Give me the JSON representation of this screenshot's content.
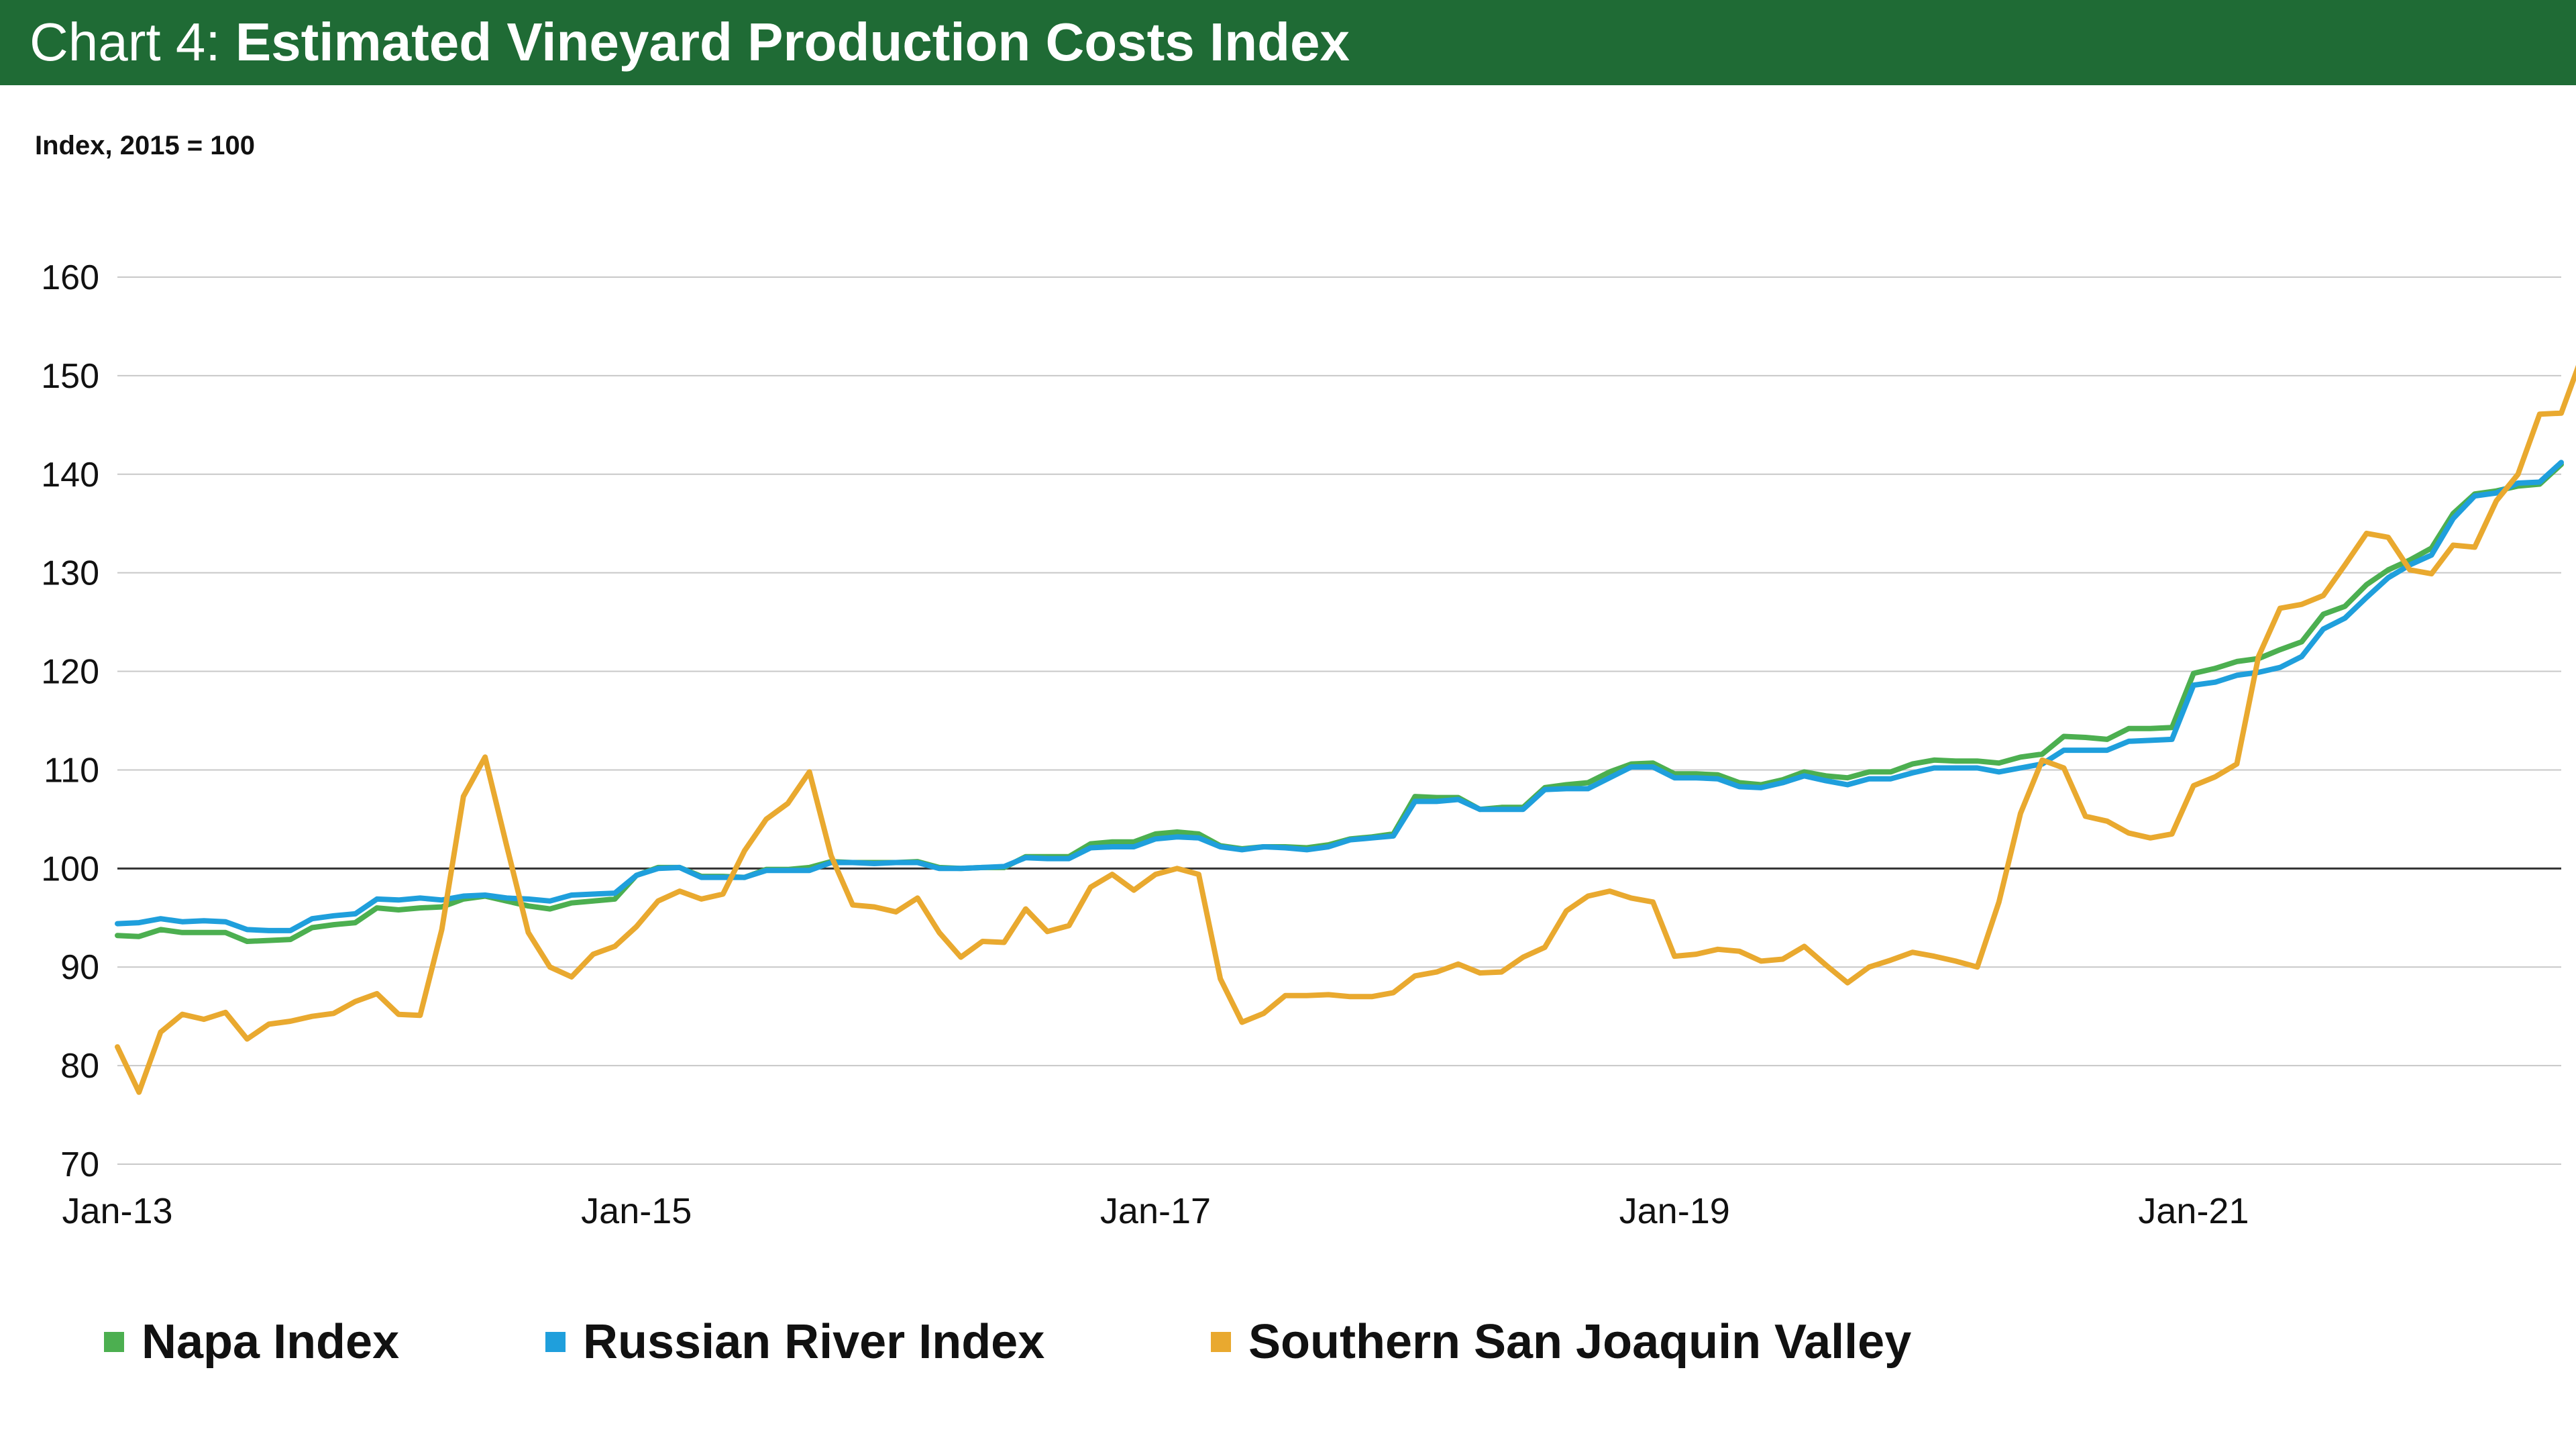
{
  "header": {
    "prefix": "Chart 4:",
    "title": "Estimated Vineyard Production Costs Index"
  },
  "chart_data": {
    "type": "line",
    "title": "Estimated Vineyard Production Costs Index",
    "ylabel": "Index, 2015 = 100",
    "xlabel": "",
    "ylim": [
      70,
      160
    ],
    "yticks": [
      70,
      80,
      90,
      100,
      110,
      120,
      130,
      140,
      150,
      160
    ],
    "xtick_labels": [
      "Jan-13",
      "Jan-15",
      "Jan-17",
      "Jan-19",
      "Jan-21"
    ],
    "xtick_months": [
      0,
      24,
      48,
      72,
      96
    ],
    "x_start": "Jan-13",
    "x_end": "Jul-21",
    "reference_line": 100,
    "grid": true,
    "legend_position": "bottom",
    "series": [
      {
        "name": "Napa Index",
        "color": "#4caf50",
        "values": [
          93.2,
          93.1,
          93.8,
          93.5,
          93.5,
          93.5,
          92.6,
          92.7,
          92.8,
          94.0,
          94.3,
          94.5,
          96.0,
          95.8,
          96.0,
          96.1,
          96.9,
          97.2,
          96.7,
          96.2,
          95.9,
          96.5,
          96.7,
          96.9,
          99.3,
          100.1,
          100.1,
          99.2,
          99.2,
          99.1,
          99.9,
          99.9,
          100.1,
          100.7,
          100.6,
          100.6,
          100.6,
          100.7,
          100.1,
          100.0,
          100.1,
          100.1,
          101.2,
          101.2,
          101.2,
          102.5,
          102.7,
          102.7,
          103.5,
          103.7,
          103.5,
          102.3,
          102.0,
          102.2,
          102.2,
          102.1,
          102.4,
          103.0,
          103.2,
          103.5,
          107.3,
          107.2,
          107.2,
          106.0,
          106.2,
          106.2,
          108.2,
          108.5,
          108.7,
          109.8,
          110.6,
          110.7,
          109.6,
          109.6,
          109.5,
          108.7,
          108.5,
          109.0,
          109.8,
          109.4,
          109.2,
          109.8,
          109.8,
          110.6,
          111.0,
          110.9,
          110.9,
          110.7,
          111.3,
          111.6,
          113.4,
          113.3,
          113.1,
          114.2,
          114.2,
          114.3,
          119.8,
          120.3,
          121.0,
          121.3,
          122.2,
          123.0,
          125.8,
          126.6,
          128.8,
          130.3,
          131.3,
          132.5,
          136.0,
          138.0,
          138.3,
          138.8,
          139.0,
          141.0
        ]
      },
      {
        "name": "Russian River Index",
        "color": "#1f9fdc",
        "values": [
          94.4,
          94.5,
          94.9,
          94.6,
          94.7,
          94.6,
          93.8,
          93.7,
          93.7,
          94.9,
          95.2,
          95.4,
          96.9,
          96.8,
          97.0,
          96.8,
          97.2,
          97.3,
          97.0,
          96.9,
          96.7,
          97.3,
          97.4,
          97.5,
          99.3,
          100.0,
          100.1,
          99.1,
          99.1,
          99.1,
          99.8,
          99.8,
          99.8,
          100.6,
          100.6,
          100.5,
          100.6,
          100.6,
          100.0,
          100.0,
          100.1,
          100.2,
          101.1,
          101.0,
          101.0,
          102.1,
          102.2,
          102.2,
          103.0,
          103.2,
          103.1,
          102.2,
          101.9,
          102.2,
          102.1,
          101.9,
          102.2,
          102.9,
          103.1,
          103.3,
          106.8,
          106.8,
          107.0,
          106.0,
          106.0,
          106.0,
          108.0,
          108.1,
          108.1,
          109.2,
          110.3,
          110.3,
          109.2,
          109.2,
          109.1,
          108.3,
          108.2,
          108.7,
          109.4,
          108.9,
          108.5,
          109.1,
          109.1,
          109.7,
          110.2,
          110.2,
          110.2,
          109.8,
          110.2,
          110.6,
          112.0,
          112.0,
          112.0,
          112.9,
          113.0,
          113.1,
          118.6,
          118.9,
          119.6,
          119.9,
          120.4,
          121.5,
          124.3,
          125.4,
          127.5,
          129.5,
          130.8,
          131.8,
          135.5,
          137.8,
          138.1,
          139.1,
          139.2,
          141.2
        ]
      },
      {
        "name": "Southern San Joaquin Valley",
        "color": "#e9a92f",
        "values": [
          81.9,
          77.3,
          83.4,
          85.2,
          84.7,
          85.4,
          82.7,
          84.2,
          84.5,
          85.0,
          85.3,
          86.5,
          87.3,
          85.2,
          85.1,
          93.8,
          107.3,
          111.3,
          102.3,
          93.5,
          90.0,
          89.0,
          91.3,
          92.1,
          94.1,
          96.7,
          97.7,
          96.9,
          97.4,
          101.8,
          105.0,
          106.6,
          109.8,
          101.3,
          96.3,
          96.1,
          95.6,
          97.0,
          93.5,
          91.0,
          92.6,
          92.5,
          95.9,
          93.6,
          94.2,
          98.1,
          99.4,
          97.8,
          99.4,
          100.0,
          99.4,
          88.8,
          84.4,
          85.3,
          87.1,
          87.1,
          87.2,
          87.0,
          87.0,
          87.4,
          89.1,
          89.5,
          90.3,
          89.4,
          89.5,
          91.0,
          92.0,
          95.7,
          97.2,
          97.7,
          97.0,
          96.6,
          91.1,
          91.3,
          91.8,
          91.6,
          90.6,
          90.8,
          92.1,
          90.2,
          88.4,
          90.0,
          90.7,
          91.5,
          91.1,
          90.6,
          90.0,
          96.6,
          105.6,
          111.0,
          110.2,
          105.3,
          104.8,
          103.6,
          103.1,
          103.5,
          108.4,
          109.3,
          110.6,
          121.5,
          126.4,
          126.8,
          127.7,
          130.8,
          134.0,
          133.6,
          130.3,
          129.9,
          132.8,
          132.6,
          137.3,
          140.0,
          146.1,
          146.2,
          152.2
        ]
      }
    ]
  }
}
